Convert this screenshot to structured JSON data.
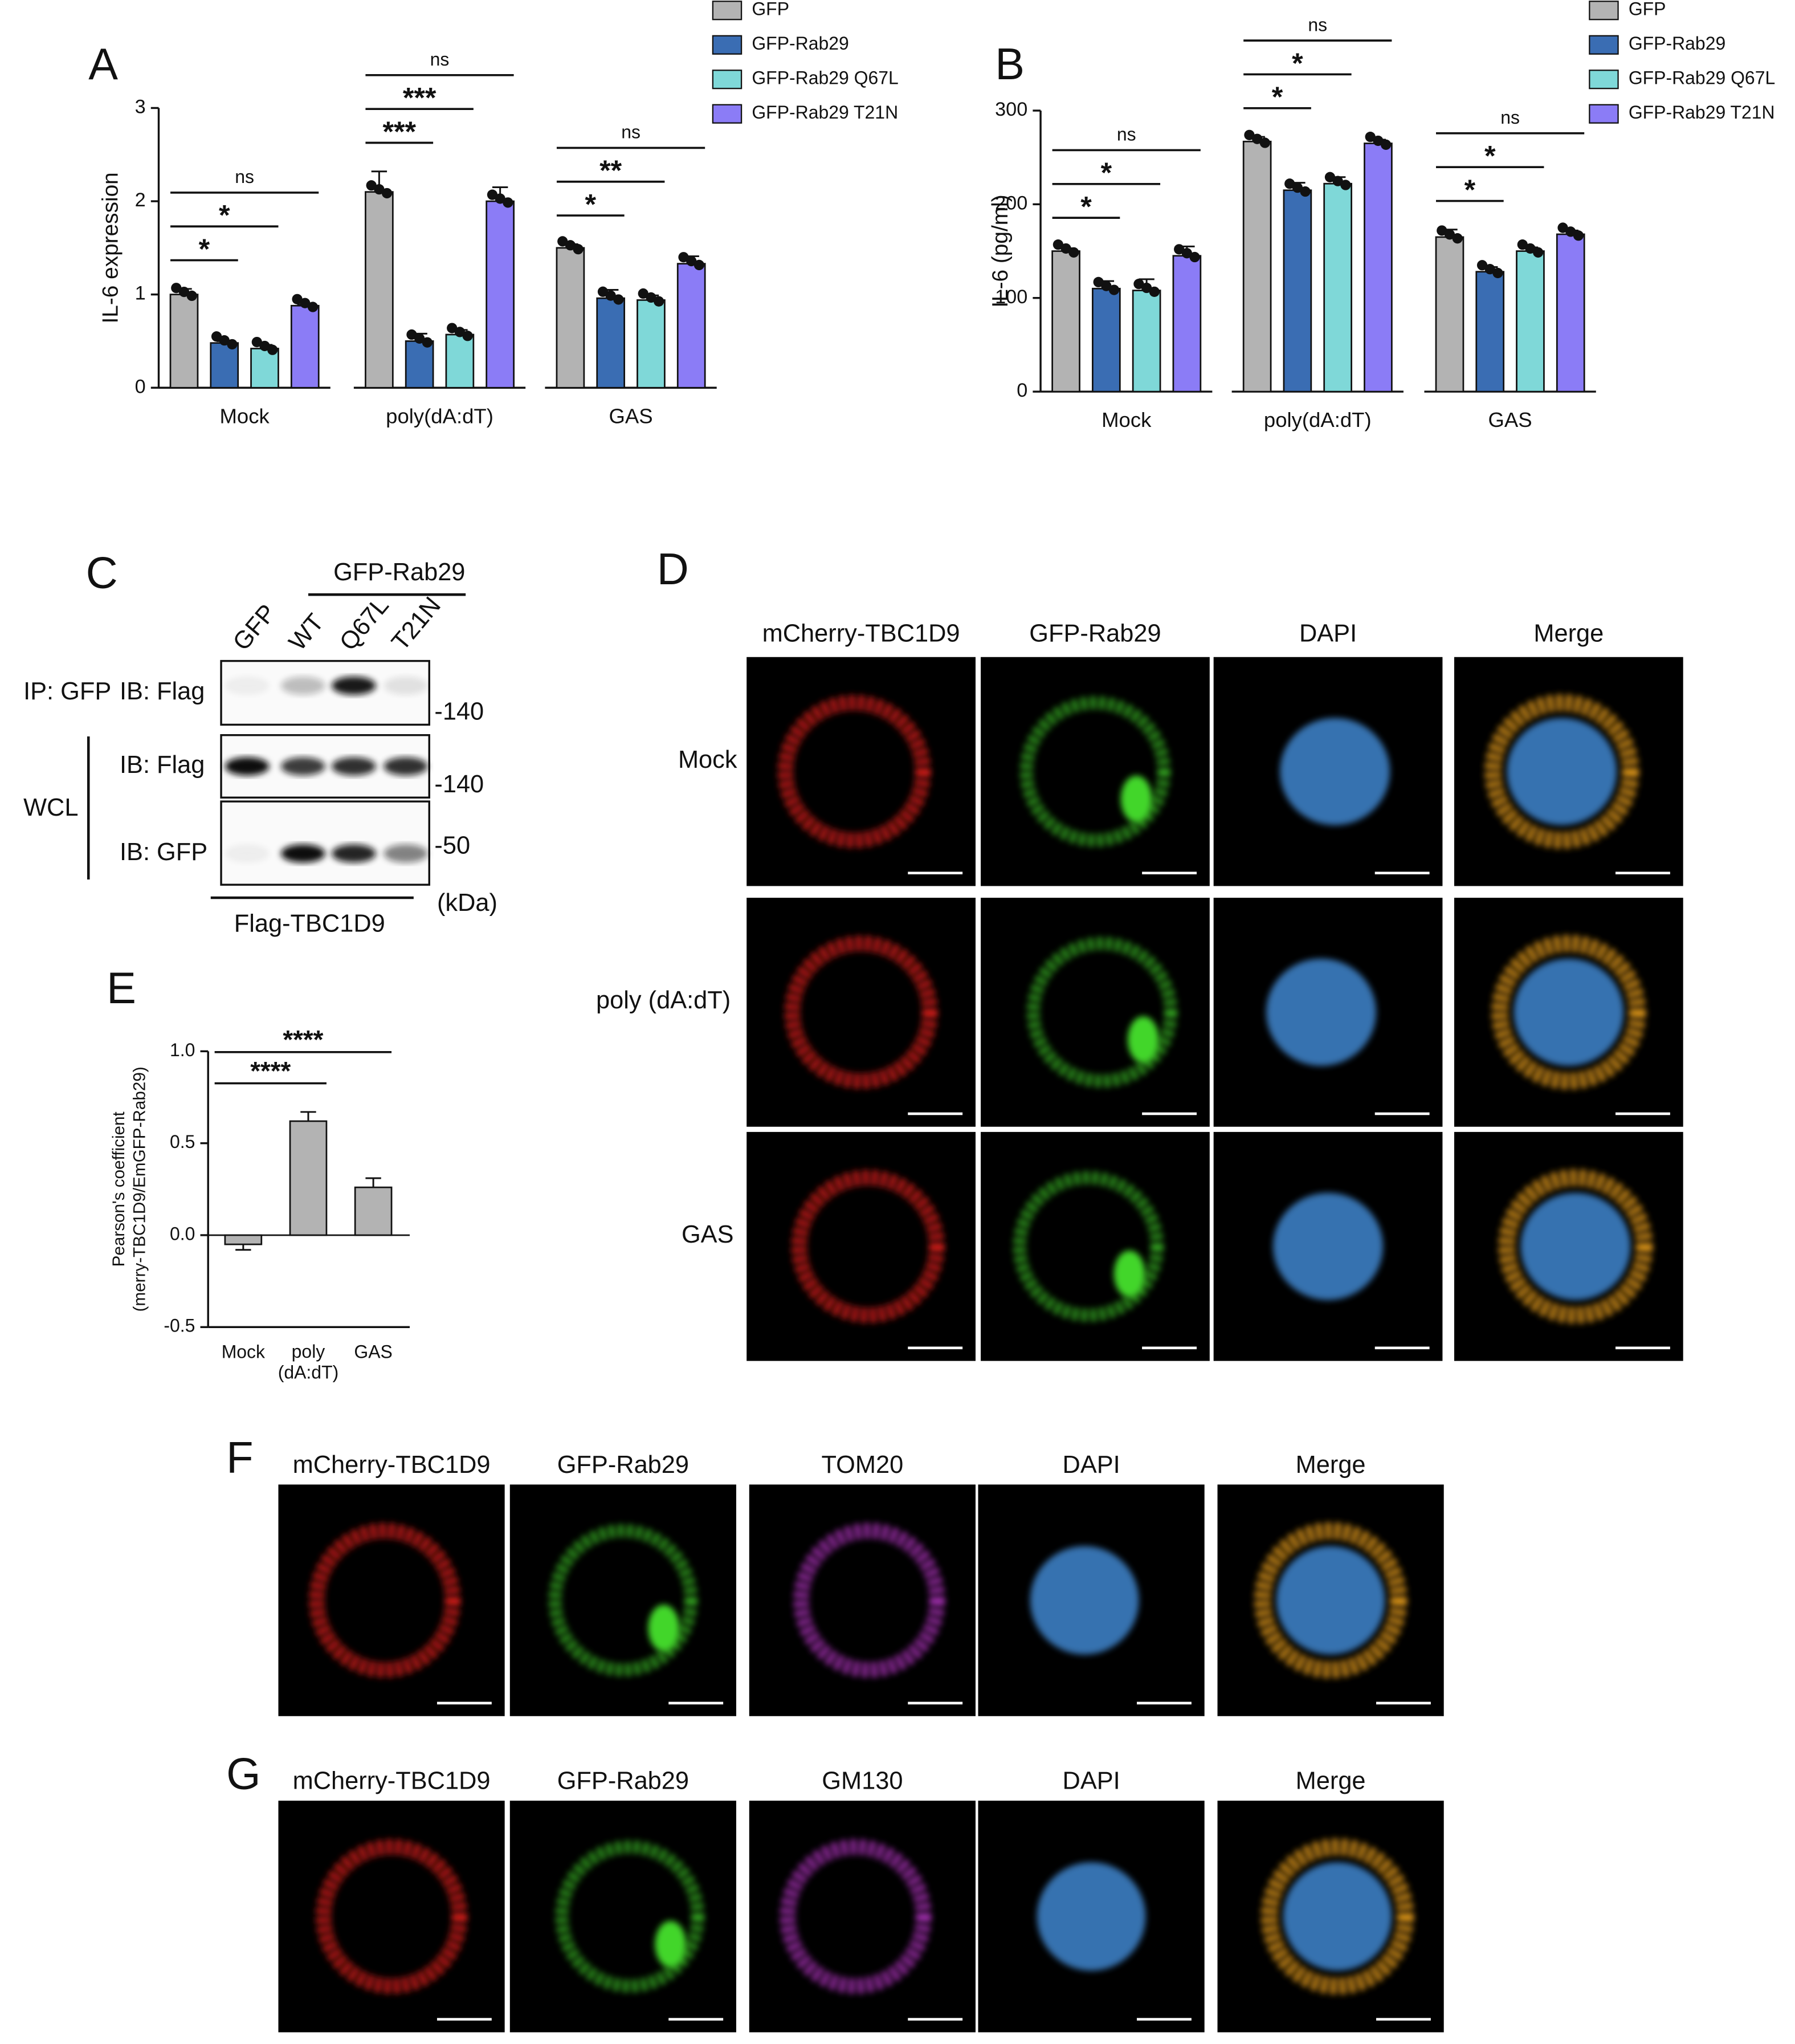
{
  "chart_data": [
    {
      "type": "bar",
      "label": "A",
      "ylabel": "IL-6 expression",
      "categories": [
        "Mock",
        "poly(dA:dT)",
        "GAS"
      ],
      "series": [
        {
          "name": "GFP",
          "color": "#b3b3b3",
          "values": [
            1.0,
            2.1,
            1.5
          ],
          "errors": [
            0.06,
            0.22,
            0.04
          ]
        },
        {
          "name": "GFP-Rab29",
          "color": "#3a6db3",
          "values": [
            0.48,
            0.5,
            0.96
          ],
          "errors": [
            0.02,
            0.08,
            0.09
          ]
        },
        {
          "name": "GFP-Rab29 Q67L",
          "color": "#7fd8d8",
          "values": [
            0.42,
            0.57,
            0.94
          ],
          "errors": [
            0.04,
            0.05,
            0.05
          ]
        },
        {
          "name": "GFP-Rab29 T21N",
          "color": "#8b7cf6",
          "values": [
            0.88,
            2.0,
            1.33
          ],
          "errors": [
            0.01,
            0.15,
            0.08
          ]
        }
      ],
      "significance": [
        [
          "*",
          "*",
          "ns"
        ],
        [
          "***",
          "***",
          "ns"
        ],
        [
          "*",
          "**",
          "ns"
        ]
      ],
      "ylim": [
        0,
        3
      ],
      "yticks": [
        0,
        1,
        2,
        3
      ]
    },
    {
      "type": "bar",
      "label": "B",
      "ylabel": "IL-6 (pg/ml)",
      "categories": [
        "Mock",
        "poly(dA:dT)",
        "GAS"
      ],
      "series": [
        {
          "name": "GFP",
          "color": "#b3b3b3",
          "values": [
            150,
            267,
            165
          ],
          "errors": [
            3,
            5,
            8
          ]
        },
        {
          "name": "GFP-Rab29",
          "color": "#3a6db3",
          "values": [
            110,
            215,
            128
          ],
          "errors": [
            8,
            8,
            5
          ]
        },
        {
          "name": "GFP-Rab29 Q67L",
          "color": "#7fd8d8",
          "values": [
            108,
            222,
            150
          ],
          "errors": [
            12,
            7,
            4
          ]
        },
        {
          "name": "GFP-Rab29 T21N",
          "color": "#8b7cf6",
          "values": [
            145,
            265,
            168
          ],
          "errors": [
            10,
            4,
            4
          ]
        }
      ],
      "significance": [
        [
          "*",
          "*",
          "ns"
        ],
        [
          "*",
          "*",
          "ns"
        ],
        [
          "*",
          "*",
          "ns"
        ]
      ],
      "ylim": [
        0,
        300
      ],
      "yticks": [
        0,
        100,
        200,
        300
      ]
    },
    {
      "type": "bar",
      "label": "E",
      "ylabel": [
        "Pearson's coefficient",
        "(merry-TBC1D9/EmGFP-Rab29)"
      ],
      "categories": [
        "Mock",
        "poly (dA:dT)",
        "GAS"
      ],
      "values": [
        -0.05,
        0.62,
        0.26
      ],
      "errors": [
        0.03,
        0.05,
        0.05
      ],
      "color": "#b3b3b3",
      "significance": [
        "****",
        "****"
      ],
      "ylim": [
        -0.5,
        1.0
      ],
      "yticks": [
        -0.5,
        {
          "value": 0,
          "label": "0.0"
        },
        0.5,
        {
          "value": 1.0,
          "label": "1.0"
        }
      ]
    }
  ],
  "panel_C": {
    "label": "C",
    "group_label": "GFP-Rab29",
    "lanes": [
      "GFP",
      "WT",
      "Q67L",
      "T21N"
    ],
    "rows": [
      {
        "section": "IP: GFP",
        "blot": "IB: Flag",
        "marker": "-140"
      },
      {
        "blot": "IB: Flag",
        "marker": "-140"
      },
      {
        "blot": "IB: GFP",
        "marker": "-50"
      }
    ],
    "section_label": "WCL",
    "unit": "(kDa)",
    "bottom_label": "Flag-TBC1D9"
  },
  "panel_D": {
    "label": "D",
    "columns": [
      "mCherry-TBC1D9",
      "GFP-Rab29",
      "DAPI",
      "Merge"
    ],
    "rows": [
      "Mock",
      "poly (dA:dT)",
      "GAS"
    ]
  },
  "panel_F": {
    "label": "F",
    "columns": [
      "mCherry-TBC1D9",
      "GFP-Rab29",
      "TOM20",
      "DAPI",
      "Merge"
    ]
  },
  "panel_G": {
    "label": "G",
    "columns": [
      "mCherry-TBC1D9",
      "GFP-Rab29",
      "GM130",
      "DAPI",
      "Merge"
    ]
  }
}
